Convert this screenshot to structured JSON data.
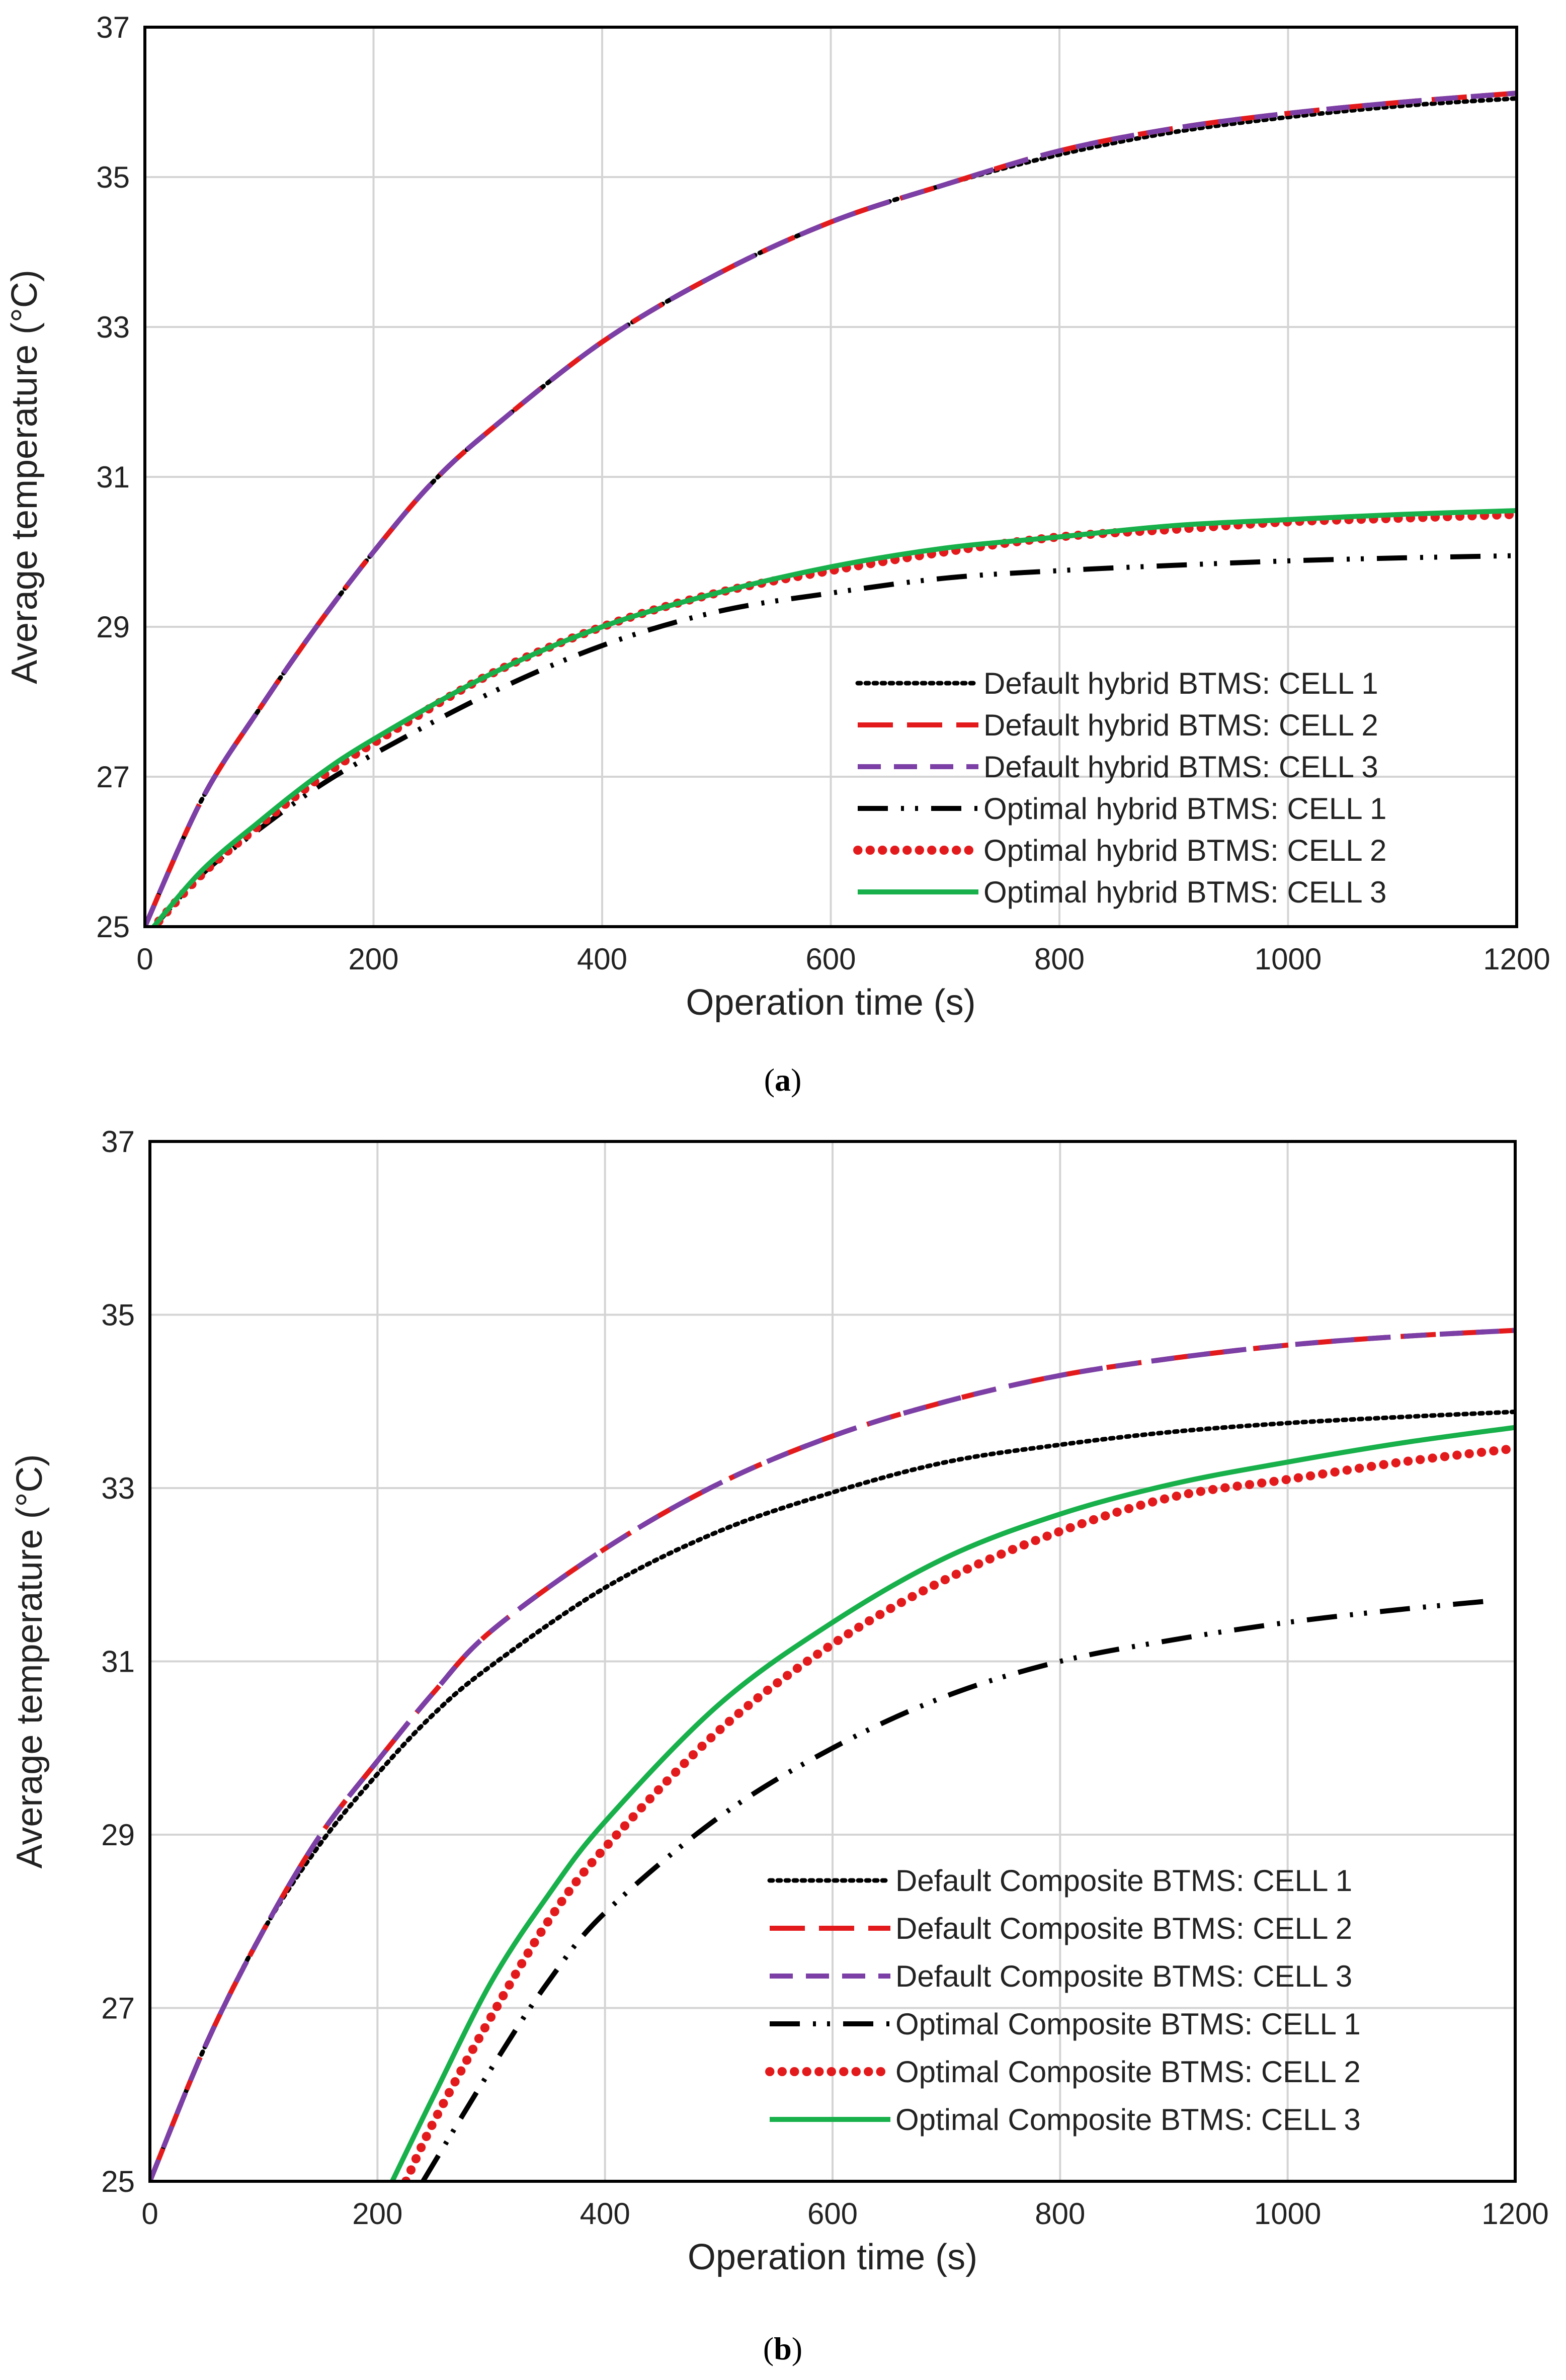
{
  "chart_data": [
    {
      "type": "line",
      "caption": {
        "open": "(",
        "letter": "a",
        "close": ")"
      },
      "xlabel": "Operation time (s)",
      "ylabel": "Average temperature (°C)",
      "xlim": [
        0,
        1200
      ],
      "ylim": [
        25,
        37
      ],
      "xticks": [
        0,
        200,
        400,
        600,
        800,
        1000,
        1200
      ],
      "yticks": [
        25,
        27,
        29,
        31,
        33,
        35,
        37
      ],
      "grid": true,
      "legend_position": "bottom-right",
      "series": [
        {
          "name": "Default hybrid BTMS: CELL 1",
          "color": "#000000",
          "style": "dotted",
          "x": [
            0,
            50,
            100,
            150,
            200,
            250,
            300,
            400,
            500,
            600,
            700,
            800,
            900,
            1000,
            1100,
            1200
          ],
          "y": [
            25.0,
            26.7,
            27.9,
            29.0,
            30.0,
            30.9,
            31.6,
            32.8,
            33.7,
            34.4,
            34.9,
            35.3,
            35.6,
            35.8,
            35.95,
            36.05
          ]
        },
        {
          "name": "Default hybrid BTMS: CELL 2",
          "color": "#e31a1c",
          "style": "longdash",
          "x": [
            0,
            50,
            100,
            150,
            200,
            250,
            300,
            400,
            500,
            600,
            700,
            800,
            900,
            1000,
            1100,
            1200
          ],
          "y": [
            25.0,
            26.7,
            27.9,
            29.0,
            30.0,
            30.9,
            31.6,
            32.8,
            33.7,
            34.4,
            34.9,
            35.35,
            35.65,
            35.85,
            36.0,
            36.12
          ]
        },
        {
          "name": "Default hybrid BTMS: CELL 3",
          "color": "#7b3fa6",
          "style": "dash",
          "x": [
            0,
            50,
            100,
            150,
            200,
            250,
            300,
            400,
            500,
            600,
            700,
            800,
            900,
            1000,
            1100,
            1200
          ],
          "y": [
            25.0,
            26.7,
            27.9,
            29.0,
            30.0,
            30.9,
            31.6,
            32.8,
            33.7,
            34.4,
            34.9,
            35.35,
            35.65,
            35.85,
            36.0,
            36.12
          ]
        },
        {
          "name": "Optimal hybrid BTMS: CELL 1",
          "color": "#000000",
          "style": "dashdotdot",
          "x": [
            5,
            50,
            100,
            150,
            200,
            300,
            400,
            500,
            600,
            700,
            800,
            900,
            1000,
            1100,
            1200
          ],
          "y": [
            24.95,
            25.7,
            26.3,
            26.85,
            27.3,
            28.1,
            28.75,
            29.2,
            29.45,
            29.65,
            29.75,
            29.82,
            29.88,
            29.92,
            29.95
          ]
        },
        {
          "name": "Optimal hybrid BTMS: CELL 2",
          "color": "#e31a1c",
          "style": "bigdots",
          "x": [
            5,
            50,
            100,
            150,
            200,
            300,
            400,
            500,
            600,
            700,
            800,
            900,
            1000,
            1100,
            1200
          ],
          "y": [
            24.95,
            25.7,
            26.35,
            26.95,
            27.45,
            28.35,
            29.0,
            29.45,
            29.75,
            30.0,
            30.2,
            30.3,
            30.4,
            30.45,
            30.5
          ]
        },
        {
          "name": "Optimal hybrid BTMS: CELL 3",
          "color": "#17b04a",
          "style": "solid",
          "x": [
            5,
            50,
            100,
            150,
            200,
            300,
            400,
            500,
            600,
            700,
            800,
            900,
            1000,
            1100,
            1200
          ],
          "y": [
            24.95,
            25.75,
            26.4,
            27.0,
            27.5,
            28.35,
            29.0,
            29.45,
            29.8,
            30.05,
            30.2,
            30.35,
            30.43,
            30.5,
            30.55
          ]
        }
      ]
    },
    {
      "type": "line",
      "caption": {
        "open": "(",
        "letter": "b",
        "close": ")"
      },
      "xlabel": "Operation time (s)",
      "ylabel": "Average temperature (°C)",
      "xlim": [
        0,
        1200
      ],
      "ylim": [
        25,
        37
      ],
      "xticks": [
        0,
        200,
        400,
        600,
        800,
        1000,
        1200
      ],
      "yticks": [
        25,
        27,
        29,
        31,
        33,
        35,
        37
      ],
      "grid": true,
      "legend_position": "bottom-right",
      "series": [
        {
          "name": "Default Composite BTMS: CELL 1",
          "color": "#000000",
          "style": "dotted",
          "x": [
            0,
            50,
            100,
            150,
            200,
            250,
            300,
            400,
            500,
            600,
            700,
            800,
            900,
            1000,
            1100,
            1200
          ],
          "y": [
            25.0,
            26.6,
            27.9,
            28.9,
            29.7,
            30.4,
            30.95,
            31.85,
            32.5,
            32.95,
            33.3,
            33.5,
            33.65,
            33.75,
            33.82,
            33.88
          ]
        },
        {
          "name": "Default Composite BTMS: CELL 2",
          "color": "#e31a1c",
          "style": "longdash",
          "x": [
            0,
            50,
            100,
            150,
            200,
            250,
            300,
            400,
            500,
            600,
            700,
            800,
            900,
            1000,
            1100,
            1200
          ],
          "y": [
            25.0,
            26.6,
            27.9,
            29.0,
            29.85,
            30.65,
            31.35,
            32.3,
            33.05,
            33.6,
            34.0,
            34.3,
            34.5,
            34.65,
            34.75,
            34.82
          ]
        },
        {
          "name": "Default Composite BTMS: CELL 3",
          "color": "#7b3fa6",
          "style": "dash",
          "x": [
            0,
            50,
            100,
            150,
            200,
            250,
            300,
            400,
            500,
            600,
            700,
            800,
            900,
            1000,
            1100,
            1200
          ],
          "y": [
            25.0,
            26.6,
            27.9,
            29.0,
            29.85,
            30.65,
            31.35,
            32.3,
            33.05,
            33.6,
            34.0,
            34.3,
            34.5,
            34.65,
            34.75,
            34.82
          ]
        },
        {
          "name": "Optimal Composite BTMS: CELL 1",
          "color": "#000000",
          "style": "dashdotdot",
          "x": [
            240,
            300,
            350,
            400,
            500,
            600,
            700,
            800,
            900,
            1000,
            1100,
            1180
          ],
          "y": [
            25.0,
            26.3,
            27.3,
            28.1,
            29.2,
            30.0,
            30.6,
            31.0,
            31.25,
            31.45,
            31.6,
            31.7
          ]
        },
        {
          "name": "Optimal Composite BTMS: CELL 2",
          "color": "#e31a1c",
          "style": "bigdots",
          "x": [
            225,
            250,
            300,
            350,
            400,
            500,
            600,
            700,
            800,
            900,
            1000,
            1100,
            1195
          ],
          "y": [
            25.0,
            25.7,
            26.9,
            28.0,
            28.85,
            30.2,
            31.2,
            31.95,
            32.5,
            32.9,
            33.1,
            33.3,
            33.45
          ]
        },
        {
          "name": "Optimal Composite BTMS: CELL 3",
          "color": "#17b04a",
          "style": "solid",
          "x": [
            213,
            250,
            300,
            350,
            400,
            500,
            600,
            700,
            800,
            900,
            1000,
            1100,
            1200
          ],
          "y": [
            25.0,
            26.0,
            27.3,
            28.3,
            29.15,
            30.5,
            31.45,
            32.2,
            32.7,
            33.05,
            33.3,
            33.52,
            33.7
          ]
        }
      ]
    }
  ]
}
